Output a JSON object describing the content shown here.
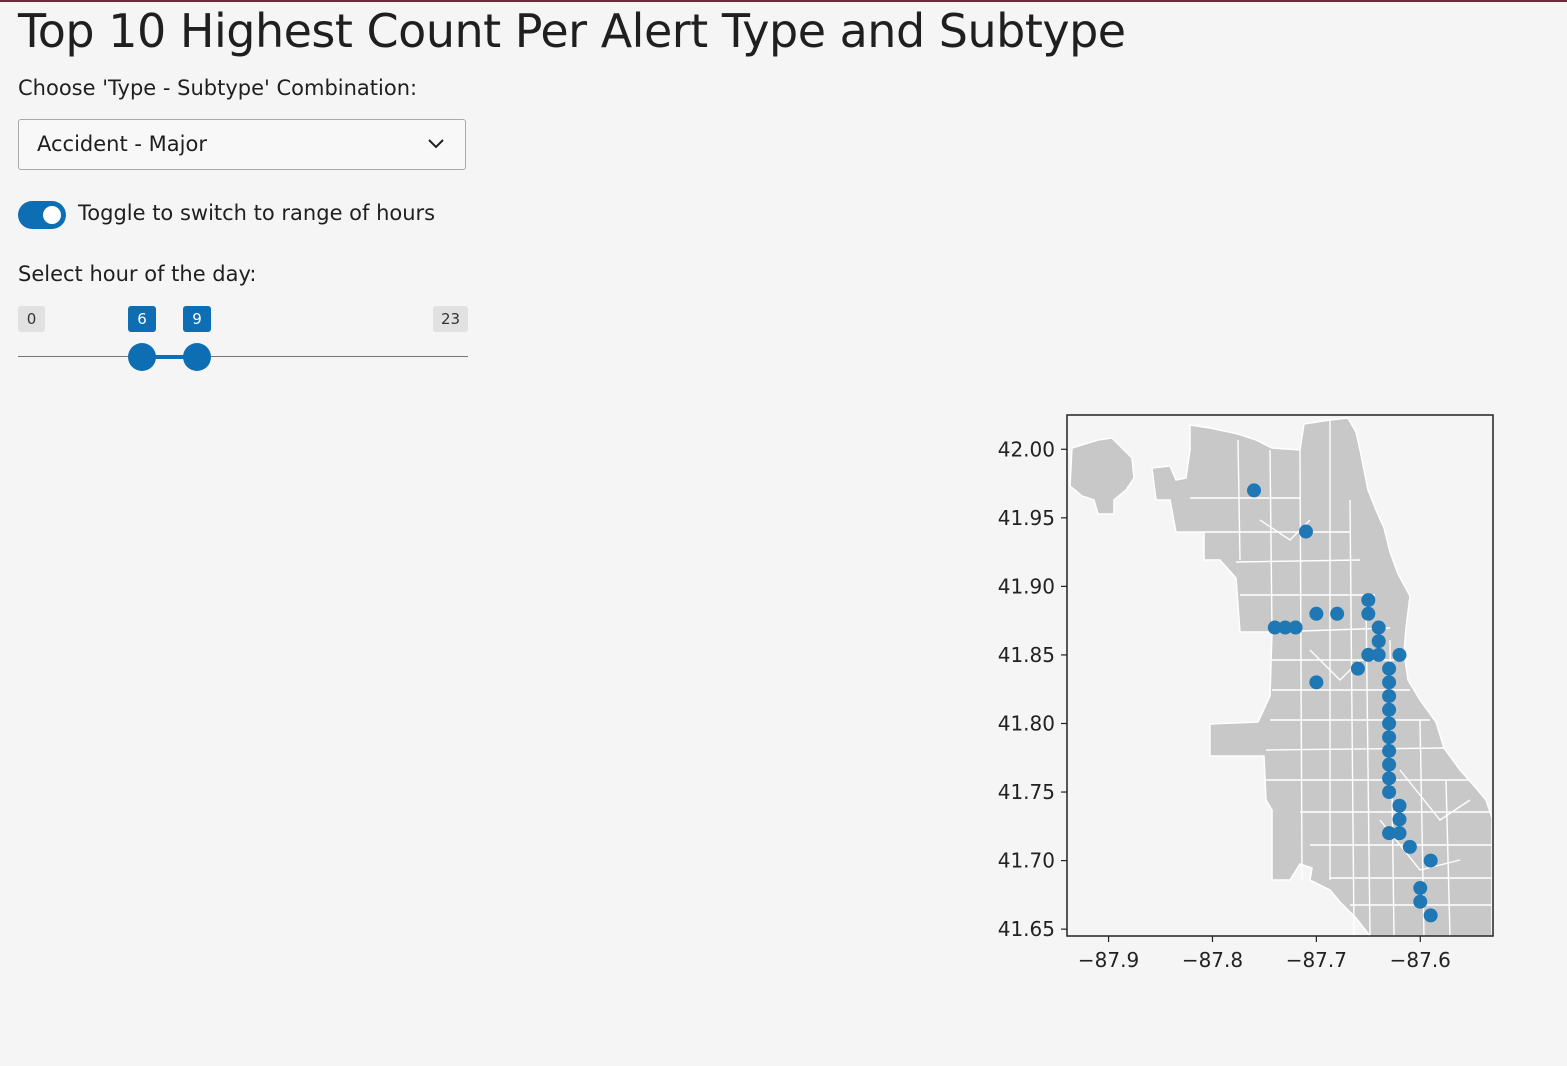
{
  "page": {
    "title": "Top 10 Highest Count Per Alert Type and Subtype"
  },
  "filter": {
    "label": "Choose 'Type - Subtype' Combination:",
    "selected": "Accident - Major"
  },
  "toggle": {
    "label": "Toggle to switch to range of hours",
    "on": true
  },
  "slider": {
    "label": "Select hour of the day:",
    "min": 0,
    "max": 23,
    "from": 6,
    "to": 9,
    "min_label": "0",
    "max_label": "23",
    "from_label": "6",
    "to_label": "9"
  },
  "colors": {
    "accent": "#0d6eb4",
    "marker": "#1f77b4",
    "basemap": "#c8c8c8"
  },
  "chart_data": {
    "type": "scatter",
    "title": "",
    "xlabel": "",
    "ylabel": "",
    "xlim": [
      -87.94,
      -87.53
    ],
    "ylim": [
      41.645,
      42.025
    ],
    "xticks": [
      -87.9,
      -87.8,
      -87.7,
      -87.6
    ],
    "xtick_labels": [
      "−87.9",
      "−87.8",
      "−87.7",
      "−87.6"
    ],
    "yticks": [
      42.0,
      41.95,
      41.9,
      41.85,
      41.8,
      41.75,
      41.7,
      41.65
    ],
    "ytick_labels": [
      "42.00",
      "41.95",
      "41.90",
      "41.85",
      "41.80",
      "41.75",
      "41.70",
      "41.65"
    ],
    "grid": false,
    "basemap": "Chicago neighborhood boundaries",
    "points": [
      {
        "x": -87.76,
        "y": 41.97
      },
      {
        "x": -87.71,
        "y": 41.94
      },
      {
        "x": -87.65,
        "y": 41.89
      },
      {
        "x": -87.65,
        "y": 41.88
      },
      {
        "x": -87.7,
        "y": 41.88
      },
      {
        "x": -87.68,
        "y": 41.88
      },
      {
        "x": -87.74,
        "y": 41.87
      },
      {
        "x": -87.73,
        "y": 41.87
      },
      {
        "x": -87.72,
        "y": 41.87
      },
      {
        "x": -87.64,
        "y": 41.87
      },
      {
        "x": -87.64,
        "y": 41.86
      },
      {
        "x": -87.65,
        "y": 41.85
      },
      {
        "x": -87.64,
        "y": 41.85
      },
      {
        "x": -87.62,
        "y": 41.85
      },
      {
        "x": -87.66,
        "y": 41.84
      },
      {
        "x": -87.63,
        "y": 41.84
      },
      {
        "x": -87.7,
        "y": 41.83
      },
      {
        "x": -87.63,
        "y": 41.83
      },
      {
        "x": -87.63,
        "y": 41.82
      },
      {
        "x": -87.63,
        "y": 41.81
      },
      {
        "x": -87.63,
        "y": 41.8
      },
      {
        "x": -87.63,
        "y": 41.79
      },
      {
        "x": -87.63,
        "y": 41.78
      },
      {
        "x": -87.63,
        "y": 41.77
      },
      {
        "x": -87.63,
        "y": 41.76
      },
      {
        "x": -87.63,
        "y": 41.75
      },
      {
        "x": -87.62,
        "y": 41.74
      },
      {
        "x": -87.62,
        "y": 41.73
      },
      {
        "x": -87.63,
        "y": 41.72
      },
      {
        "x": -87.62,
        "y": 41.72
      },
      {
        "x": -87.61,
        "y": 41.71
      },
      {
        "x": -87.59,
        "y": 41.7
      },
      {
        "x": -87.6,
        "y": 41.68
      },
      {
        "x": -87.6,
        "y": 41.67
      },
      {
        "x": -87.59,
        "y": 41.66
      }
    ]
  }
}
